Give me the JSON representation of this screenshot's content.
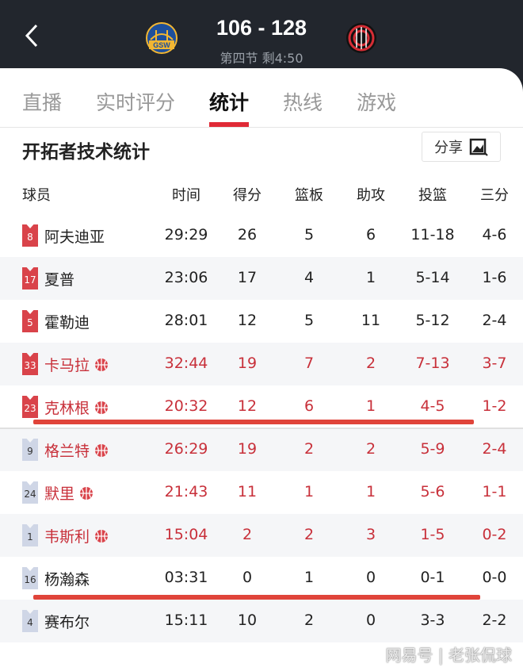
{
  "header": {
    "back_icon": "chevron-left-icon",
    "score": "106 - 128",
    "period": "第四节 剩4:50",
    "home_logo": "GSW",
    "away_logo": "POR"
  },
  "tabs": [
    {
      "label": "直播"
    },
    {
      "label": "实时评分"
    },
    {
      "label": "统计",
      "active": true
    },
    {
      "label": "热线"
    },
    {
      "label": "游戏"
    }
  ],
  "section_title": "开拓者技术统计",
  "share": {
    "label": "分享",
    "icon": "image-icon"
  },
  "columns": [
    "球员",
    "时间",
    "得分",
    "篮板",
    "助攻",
    "投篮",
    "三分"
  ],
  "colors": {
    "accent": "#e02a36",
    "hot_text": "#c8303a",
    "starter_jersey": "#d9434a",
    "bench_jersey": "#cfd6e6"
  },
  "players": [
    {
      "num": "8",
      "name": "阿夫迪亚",
      "min": "29:29",
      "pts": "26",
      "reb": "5",
      "ast": "6",
      "fg": "11-18",
      "tp": "4-6",
      "starter": true,
      "hot": false
    },
    {
      "num": "17",
      "name": "夏普",
      "min": "23:06",
      "pts": "17",
      "reb": "4",
      "ast": "1",
      "fg": "5-14",
      "tp": "1-6",
      "starter": true,
      "hot": false
    },
    {
      "num": "5",
      "name": "霍勒迪",
      "min": "28:01",
      "pts": "12",
      "reb": "5",
      "ast": "11",
      "fg": "5-12",
      "tp": "2-4",
      "starter": true,
      "hot": false
    },
    {
      "num": "33",
      "name": "卡马拉",
      "min": "32:44",
      "pts": "19",
      "reb": "7",
      "ast": "2",
      "fg": "7-13",
      "tp": "3-7",
      "starter": true,
      "hot": true
    },
    {
      "num": "23",
      "name": "克林根",
      "min": "20:32",
      "pts": "12",
      "reb": "6",
      "ast": "1",
      "fg": "4-5",
      "tp": "1-2",
      "starter": true,
      "hot": true
    },
    {
      "num": "9",
      "name": "格兰特",
      "min": "26:29",
      "pts": "19",
      "reb": "2",
      "ast": "2",
      "fg": "5-9",
      "tp": "2-4",
      "starter": false,
      "hot": true
    },
    {
      "num": "24",
      "name": "默里",
      "min": "21:43",
      "pts": "11",
      "reb": "1",
      "ast": "1",
      "fg": "5-6",
      "tp": "1-1",
      "starter": false,
      "hot": true
    },
    {
      "num": "1",
      "name": "韦斯利",
      "min": "15:04",
      "pts": "2",
      "reb": "2",
      "ast": "3",
      "fg": "1-5",
      "tp": "0-2",
      "starter": false,
      "hot": true
    },
    {
      "num": "16",
      "name": "杨瀚森",
      "min": "03:31",
      "pts": "0",
      "reb": "1",
      "ast": "0",
      "fg": "0-1",
      "tp": "0-0",
      "starter": false,
      "hot": false
    },
    {
      "num": "4",
      "name": "赛布尔",
      "min": "15:11",
      "pts": "10",
      "reb": "2",
      "ast": "0",
      "fg": "3-3",
      "tp": "2-2",
      "starter": false,
      "hot": false
    }
  ],
  "watermark": "网易号 | 老张侃球"
}
